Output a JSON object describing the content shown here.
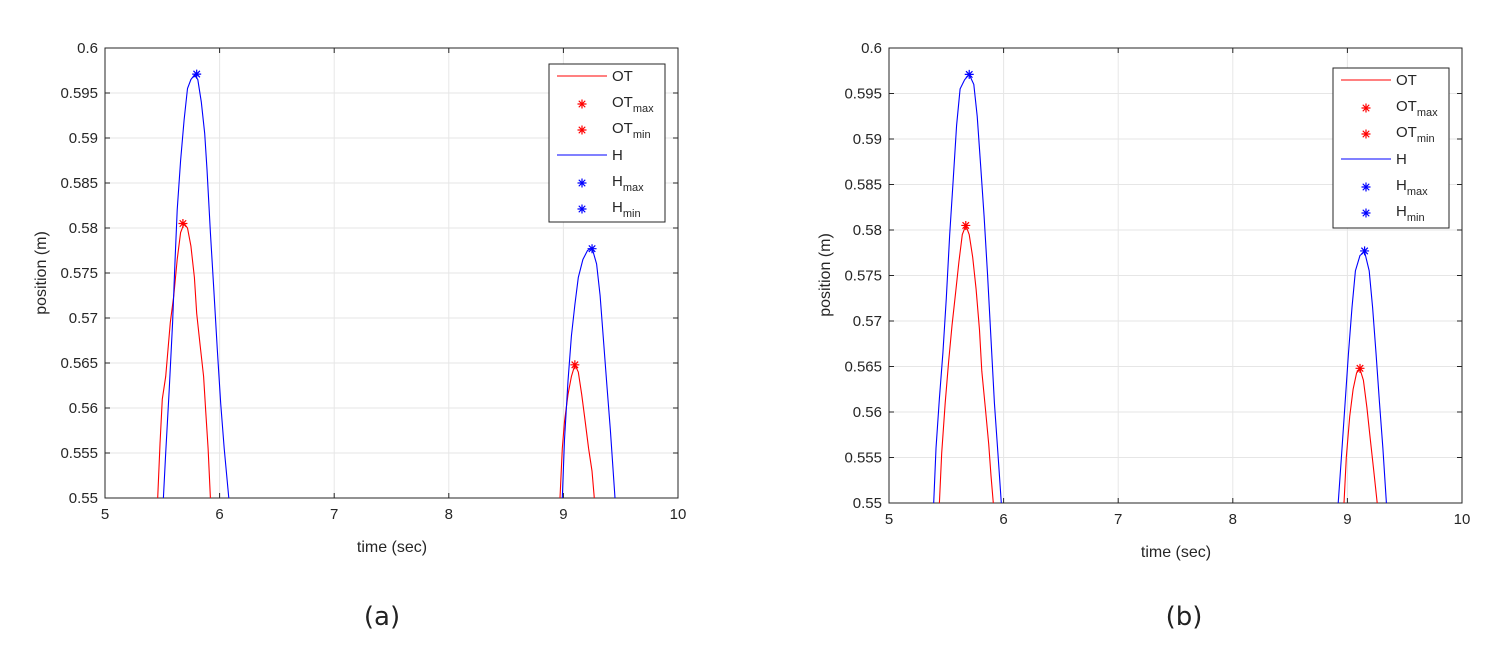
{
  "chart_data": [
    {
      "type": "line",
      "panel_label": "(a)",
      "xlabel": "time (sec)",
      "ylabel": "position (m)",
      "xlim": [
        5,
        10
      ],
      "ylim": [
        0.55,
        0.6
      ],
      "xticks": [
        5,
        6,
        7,
        8,
        9,
        10
      ],
      "yticks": [
        0.55,
        0.555,
        0.56,
        0.565,
        0.57,
        0.575,
        0.58,
        0.585,
        0.59,
        0.595,
        0.6
      ],
      "grid": true,
      "legend_position": "top-right",
      "legend": [
        {
          "label": "OT",
          "sub": "",
          "marker": "line",
          "color": "#ff0000"
        },
        {
          "label": "OT",
          "sub": "max",
          "marker": "star",
          "color": "#ff0000"
        },
        {
          "label": "OT",
          "sub": "min",
          "marker": "star",
          "color": "#ff0000"
        },
        {
          "label": "H",
          "sub": "",
          "marker": "line",
          "color": "#0000ff"
        },
        {
          "label": "H",
          "sub": "max",
          "marker": "star",
          "color": "#0000ff"
        },
        {
          "label": "H",
          "sub": "min",
          "marker": "star",
          "color": "#0000ff"
        }
      ],
      "series": [
        {
          "name": "OT",
          "color": "#ff0000",
          "segments": [
            [
              [
                5.46,
                0.55
              ],
              [
                5.48,
                0.556
              ],
              [
                5.5,
                0.561
              ],
              [
                5.53,
                0.5635
              ],
              [
                5.55,
                0.5665
              ],
              [
                5.57,
                0.5695
              ],
              [
                5.6,
                0.5725
              ],
              [
                5.63,
                0.5765
              ],
              [
                5.66,
                0.5795
              ],
              [
                5.69,
                0.5805
              ],
              [
                5.72,
                0.58
              ],
              [
                5.75,
                0.578
              ],
              [
                5.78,
                0.5745
              ],
              [
                5.8,
                0.5705
              ],
              [
                5.83,
                0.567
              ],
              [
                5.86,
                0.5635
              ],
              [
                5.88,
                0.5595
              ],
              [
                5.9,
                0.5555
              ],
              [
                5.92,
                0.55
              ]
            ],
            [
              [
                8.97,
                0.55
              ],
              [
                8.99,
                0.5555
              ],
              [
                9.01,
                0.5585
              ],
              [
                9.04,
                0.5615
              ],
              [
                9.07,
                0.5635
              ],
              [
                9.1,
                0.5648
              ],
              [
                9.13,
                0.564
              ],
              [
                9.16,
                0.5615
              ],
              [
                9.19,
                0.5585
              ],
              [
                9.22,
                0.5555
              ],
              [
                9.25,
                0.553
              ],
              [
                9.27,
                0.55
              ]
            ]
          ]
        },
        {
          "name": "H",
          "color": "#0000ff",
          "segments": [
            [
              [
                5.51,
                0.55
              ],
              [
                5.53,
                0.555
              ],
              [
                5.56,
                0.562
              ],
              [
                5.59,
                0.5695
              ],
              [
                5.61,
                0.576
              ],
              [
                5.63,
                0.582
              ],
              [
                5.66,
                0.5875
              ],
              [
                5.69,
                0.592
              ],
              [
                5.72,
                0.5955
              ],
              [
                5.75,
                0.5965
              ],
              [
                5.78,
                0.597
              ],
              [
                5.81,
                0.5965
              ],
              [
                5.84,
                0.594
              ],
              [
                5.87,
                0.5905
              ],
              [
                5.89,
                0.5865
              ],
              [
                5.92,
                0.5795
              ],
              [
                5.95,
                0.573
              ],
              [
                5.98,
                0.5665
              ],
              [
                6.01,
                0.5605
              ],
              [
                6.04,
                0.5555
              ],
              [
                6.08,
                0.55
              ]
            ],
            [
              [
                8.99,
                0.55
              ],
              [
                9.01,
                0.5565
              ],
              [
                9.04,
                0.563
              ],
              [
                9.07,
                0.568
              ],
              [
                9.1,
                0.5715
              ],
              [
                9.13,
                0.5745
              ],
              [
                9.17,
                0.5765
              ],
              [
                9.21,
                0.5775
              ],
              [
                9.25,
                0.5778
              ],
              [
                9.29,
                0.576
              ],
              [
                9.32,
                0.5725
              ],
              [
                9.35,
                0.5675
              ],
              [
                9.38,
                0.5625
              ],
              [
                9.41,
                0.5575
              ],
              [
                9.45,
                0.55
              ]
            ]
          ]
        }
      ],
      "markers": [
        {
          "name": "OTmax",
          "color": "#ff0000",
          "x": 5.68,
          "y": 0.5805
        },
        {
          "name": "OTmin",
          "color": "#ff0000",
          "x": 9.1,
          "y": 0.5648
        },
        {
          "name": "Hmax",
          "color": "#0000ff",
          "x": 5.8,
          "y": 0.5971
        },
        {
          "name": "Hmin",
          "color": "#0000ff",
          "x": 9.25,
          "y": 0.5777
        }
      ]
    },
    {
      "type": "line",
      "panel_label": "(b)",
      "xlabel": "time (sec)",
      "ylabel": "position (m)",
      "xlim": [
        5,
        10
      ],
      "ylim": [
        0.55,
        0.6
      ],
      "xticks": [
        5,
        6,
        7,
        8,
        9,
        10
      ],
      "yticks": [
        0.55,
        0.555,
        0.56,
        0.565,
        0.57,
        0.575,
        0.58,
        0.585,
        0.59,
        0.595,
        0.6
      ],
      "grid": true,
      "legend_position": "top-right",
      "legend": [
        {
          "label": "OT",
          "sub": "",
          "marker": "line",
          "color": "#ff0000"
        },
        {
          "label": "OT",
          "sub": "max",
          "marker": "star",
          "color": "#ff0000"
        },
        {
          "label": "OT",
          "sub": "min",
          "marker": "star",
          "color": "#ff0000"
        },
        {
          "label": "H",
          "sub": "",
          "marker": "line",
          "color": "#0000ff"
        },
        {
          "label": "H",
          "sub": "max",
          "marker": "star",
          "color": "#0000ff"
        },
        {
          "label": "H",
          "sub": "min",
          "marker": "star",
          "color": "#0000ff"
        }
      ],
      "series": [
        {
          "name": "OT",
          "color": "#ff0000",
          "segments": [
            [
              [
                5.44,
                0.55
              ],
              [
                5.46,
                0.5555
              ],
              [
                5.49,
                0.561
              ],
              [
                5.52,
                0.5655
              ],
              [
                5.55,
                0.5695
              ],
              [
                5.58,
                0.573
              ],
              [
                5.61,
                0.5765
              ],
              [
                5.64,
                0.5795
              ],
              [
                5.67,
                0.5805
              ],
              [
                5.7,
                0.5795
              ],
              [
                5.73,
                0.577
              ],
              [
                5.76,
                0.5735
              ],
              [
                5.79,
                0.569
              ],
              [
                5.81,
                0.5645
              ],
              [
                5.84,
                0.5605
              ],
              [
                5.87,
                0.5565
              ],
              [
                5.89,
                0.553
              ],
              [
                5.91,
                0.55
              ]
            ],
            [
              [
                8.97,
                0.55
              ],
              [
                8.99,
                0.555
              ],
              [
                9.02,
                0.5595
              ],
              [
                9.05,
                0.5625
              ],
              [
                9.08,
                0.5643
              ],
              [
                9.11,
                0.5647
              ],
              [
                9.14,
                0.5635
              ],
              [
                9.17,
                0.5605
              ],
              [
                9.2,
                0.557
              ],
              [
                9.23,
                0.5535
              ],
              [
                9.26,
                0.55
              ]
            ]
          ]
        },
        {
          "name": "H",
          "color": "#0000ff",
          "segments": [
            [
              [
                5.39,
                0.55
              ],
              [
                5.41,
                0.556
              ],
              [
                5.44,
                0.5615
              ],
              [
                5.47,
                0.5665
              ],
              [
                5.5,
                0.5725
              ],
              [
                5.53,
                0.5795
              ],
              [
                5.56,
                0.5855
              ],
              [
                5.59,
                0.5915
              ],
              [
                5.62,
                0.5955
              ],
              [
                5.66,
                0.5965
              ],
              [
                5.7,
                0.5971
              ],
              [
                5.74,
                0.596
              ],
              [
                5.77,
                0.5925
              ],
              [
                5.8,
                0.587
              ],
              [
                5.83,
                0.5815
              ],
              [
                5.86,
                0.575
              ],
              [
                5.89,
                0.568
              ],
              [
                5.92,
                0.561
              ],
              [
                5.95,
                0.5555
              ],
              [
                5.98,
                0.55
              ]
            ],
            [
              [
                8.92,
                0.55
              ],
              [
                8.95,
                0.5555
              ],
              [
                8.98,
                0.561
              ],
              [
                9.01,
                0.5665
              ],
              [
                9.04,
                0.5715
              ],
              [
                9.07,
                0.5755
              ],
              [
                9.11,
                0.5772
              ],
              [
                9.15,
                0.5776
              ],
              [
                9.19,
                0.5755
              ],
              [
                9.22,
                0.5715
              ],
              [
                9.25,
                0.5665
              ],
              [
                9.28,
                0.561
              ],
              [
                9.31,
                0.556
              ],
              [
                9.34,
                0.55
              ]
            ]
          ]
        }
      ],
      "markers": [
        {
          "name": "OTmax",
          "color": "#ff0000",
          "x": 5.67,
          "y": 0.5805
        },
        {
          "name": "OTmin",
          "color": "#ff0000",
          "x": 9.11,
          "y": 0.5648
        },
        {
          "name": "Hmax",
          "color": "#0000ff",
          "x": 5.7,
          "y": 0.5971
        },
        {
          "name": "Hmin",
          "color": "#0000ff",
          "x": 9.15,
          "y": 0.5777
        }
      ]
    }
  ]
}
